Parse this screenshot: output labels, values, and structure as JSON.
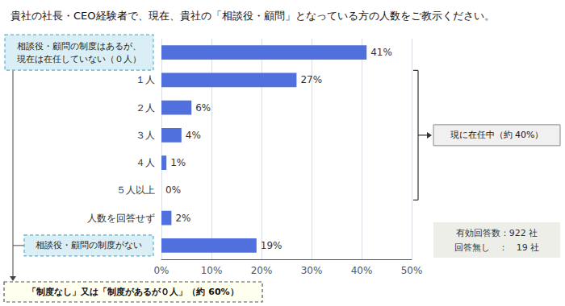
{
  "chart_data": {
    "type": "bar",
    "orientation": "horizontal",
    "title": "貴社の社長・CEO経験者で、現在、貴社の「相談役・顧問」となっている方の人数をご教示ください。",
    "categories": [
      null,
      "１人",
      "２人",
      "３人",
      "４人",
      "５人以上",
      "人数を回答せず",
      null
    ],
    "values": [
      41,
      27,
      6,
      4,
      1,
      0,
      2,
      19
    ],
    "value_labels": [
      "41%",
      "27%",
      "6%",
      "4%",
      "1%",
      "0%",
      "2%",
      "19%"
    ],
    "xlim": [
      0,
      50
    ],
    "xticks": [
      {
        "value": 0,
        "label": "0%"
      },
      {
        "value": 10,
        "label": "10%"
      },
      {
        "value": 20,
        "label": "20%"
      },
      {
        "value": 30,
        "label": "30%"
      },
      {
        "value": 40,
        "label": "40%"
      },
      {
        "value": 50,
        "label": "50%"
      }
    ],
    "grid": true,
    "data_labels": true,
    "annotations": [
      "相談役・顧問の制度はあるが、\n現在は在任していない（０人）",
      "相談役・顧問の制度がない",
      "「制度なし」又は「制度があるが０人」（約 60%）",
      "現に在任中（約 40%）",
      "有効回答数：922 社",
      "回答無し　：　19 社"
    ]
  }
}
